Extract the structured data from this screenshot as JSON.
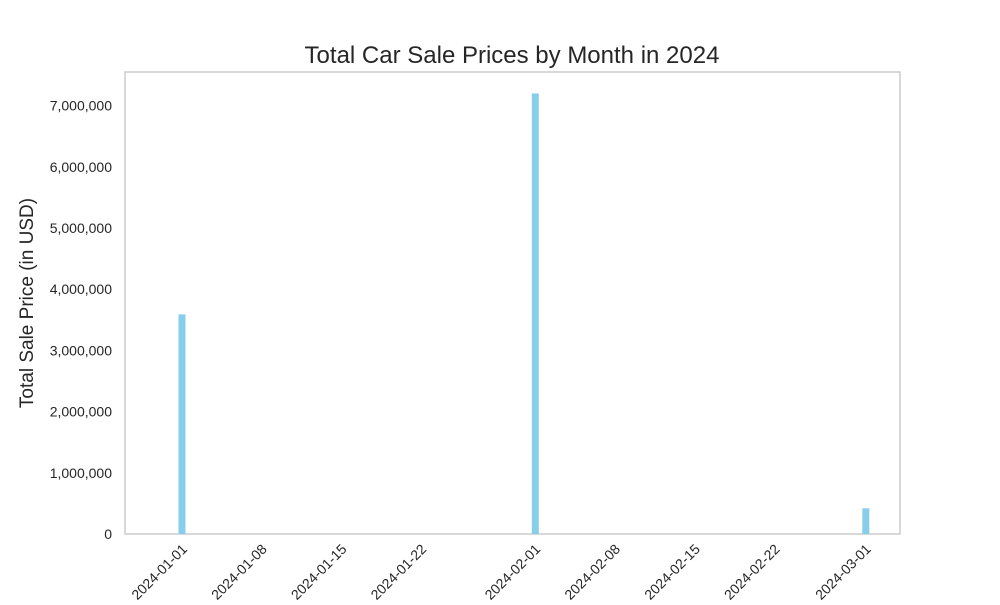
{
  "chart_data": {
    "type": "bar",
    "title": "Total Car Sale Prices by Month in 2024",
    "xlabel": "",
    "ylabel": "Total Sale Price (in USD)",
    "x": [
      "2024-01-01",
      "2024-02-01",
      "2024-03-01"
    ],
    "values": [
      3590000,
      7200000,
      420000
    ],
    "ylim": [
      0,
      7550000
    ],
    "xlim": [
      "2023-12-27",
      "2024-03-04"
    ],
    "x_ticks": [
      "2024-01-01",
      "2024-01-08",
      "2024-01-15",
      "2024-01-22",
      "2024-02-01",
      "2024-02-08",
      "2024-02-15",
      "2024-02-22",
      "2024-03-01"
    ],
    "y_ticks": [
      0,
      1000000,
      2000000,
      3000000,
      4000000,
      5000000,
      6000000,
      7000000
    ],
    "y_tick_labels": [
      "0",
      "1,000,000",
      "2,000,000",
      "3,000,000",
      "4,000,000",
      "5,000,000",
      "6,000,000",
      "7,000,000"
    ],
    "bar_color": "#87ceeb",
    "grid": false,
    "legend": "none"
  }
}
